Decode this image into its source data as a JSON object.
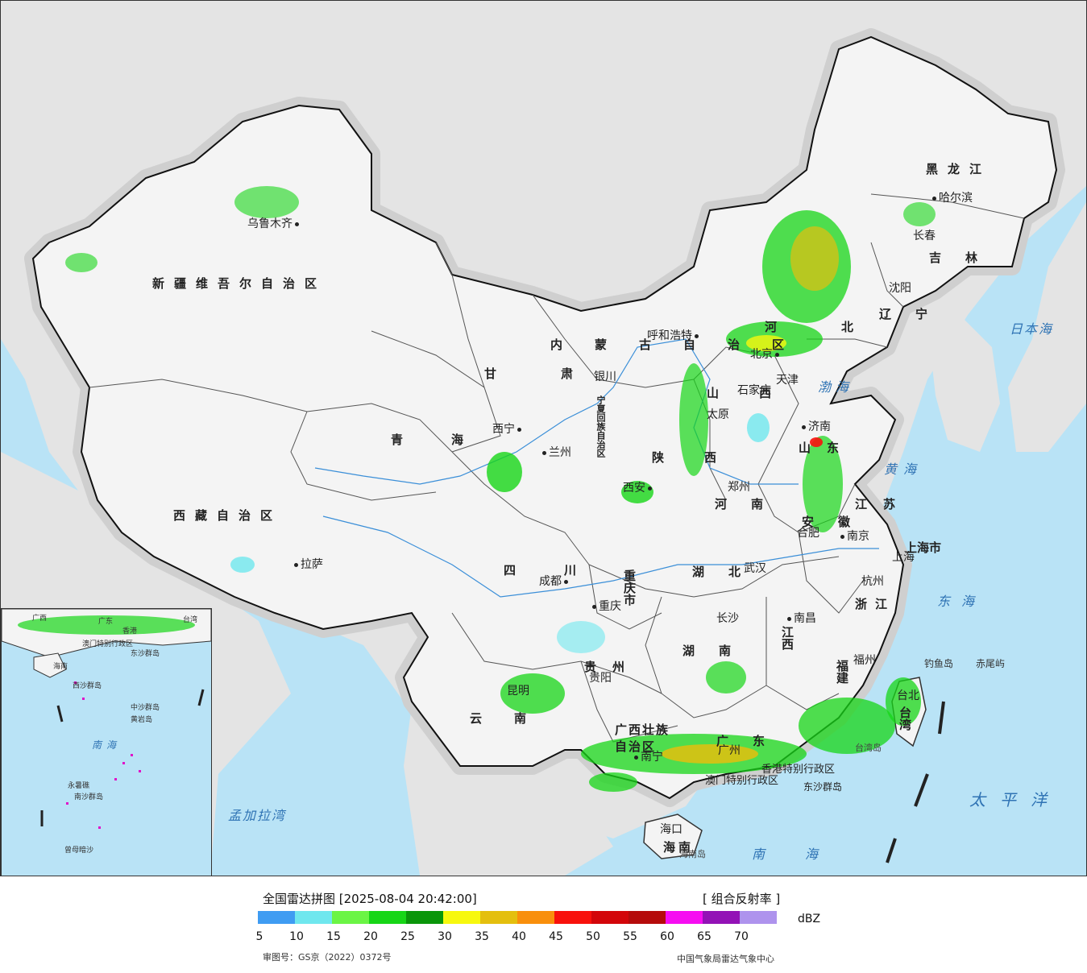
{
  "legend": {
    "title": "全国雷达拼图 [2025-08-04 20:42:00]",
    "product": "[ 组合反射率 ]",
    "unit": "dBZ",
    "scale": [
      {
        "value": "5",
        "color": "#3f9cf2"
      },
      {
        "value": "10",
        "color": "#6fe7ee"
      },
      {
        "value": "15",
        "color": "#6bf545"
      },
      {
        "value": "20",
        "color": "#17d617"
      },
      {
        "value": "25",
        "color": "#0a960a"
      },
      {
        "value": "30",
        "color": "#f7f80e"
      },
      {
        "value": "35",
        "color": "#e4bf0e"
      },
      {
        "value": "40",
        "color": "#f98f0c"
      },
      {
        "value": "45",
        "color": "#f8110c"
      },
      {
        "value": "50",
        "color": "#d3060a"
      },
      {
        "value": "55",
        "color": "#b50b0b"
      },
      {
        "value": "60",
        "color": "#f60df1"
      },
      {
        "value": "65",
        "color": "#9312b6"
      },
      {
        "value": "70",
        "color": "#ae93ed"
      }
    ],
    "approval": "审图号：GS京（2022）0372号",
    "agency": "中国气象局雷达气象中心"
  },
  "provinces": [
    {
      "name": "新疆维吾尔自治区"
    },
    {
      "name": "西藏自治区"
    },
    {
      "name": "青海"
    },
    {
      "name": "甘肃"
    },
    {
      "name": "内蒙古自治区"
    },
    {
      "name": "黑龙江"
    },
    {
      "name": "吉林"
    },
    {
      "name": "辽宁"
    },
    {
      "name": "河北"
    },
    {
      "name": "山西"
    },
    {
      "name": "陕西"
    },
    {
      "name": "河南"
    },
    {
      "name": "山东"
    },
    {
      "name": "江苏"
    },
    {
      "name": "安徽"
    },
    {
      "name": "湖北"
    },
    {
      "name": "四川"
    },
    {
      "name": "重庆市"
    },
    {
      "name": "浙江"
    },
    {
      "name": "江西"
    },
    {
      "name": "湖南"
    },
    {
      "name": "贵州"
    },
    {
      "name": "云南"
    },
    {
      "name": "福建"
    },
    {
      "name": "广西壮族自治区"
    },
    {
      "name": "广东"
    },
    {
      "name": "台湾"
    },
    {
      "name": "海南"
    },
    {
      "name": "上海市"
    },
    {
      "name": "宁夏回族自治区"
    }
  ],
  "cities": [
    {
      "name": "乌鲁木齐"
    },
    {
      "name": "拉萨"
    },
    {
      "name": "西宁"
    },
    {
      "name": "兰州"
    },
    {
      "name": "银川"
    },
    {
      "name": "呼和浩特"
    },
    {
      "name": "哈尔滨"
    },
    {
      "name": "长春"
    },
    {
      "name": "沈阳"
    },
    {
      "name": "北京"
    },
    {
      "name": "天津"
    },
    {
      "name": "石家庄"
    },
    {
      "name": "太原"
    },
    {
      "name": "济南"
    },
    {
      "name": "郑州"
    },
    {
      "name": "西安"
    },
    {
      "name": "合肥"
    },
    {
      "name": "南京"
    },
    {
      "name": "上海"
    },
    {
      "name": "杭州"
    },
    {
      "name": "武汉"
    },
    {
      "name": "成都"
    },
    {
      "name": "重庆"
    },
    {
      "name": "长沙"
    },
    {
      "name": "南昌"
    },
    {
      "name": "福州"
    },
    {
      "name": "贵阳"
    },
    {
      "name": "昆明"
    },
    {
      "name": "南宁"
    },
    {
      "name": "广州"
    },
    {
      "name": "台北"
    },
    {
      "name": "海口"
    },
    {
      "name": "钓鱼岛"
    },
    {
      "name": "赤尾屿"
    },
    {
      "name": "香港特别行政区"
    },
    {
      "name": "澳门特别行政区"
    },
    {
      "name": "东沙群岛"
    },
    {
      "name": "海南岛"
    },
    {
      "name": "台湾岛"
    }
  ],
  "seas": [
    {
      "name": "日本海"
    },
    {
      "name": "渤海"
    },
    {
      "name": "黄海"
    },
    {
      "name": "东海"
    },
    {
      "name": "太平洋"
    },
    {
      "name": "南海"
    },
    {
      "name": "孟加拉湾"
    }
  ],
  "inset": {
    "labels": [
      "广西",
      "广东",
      "台湾",
      "香港",
      "澳门特别行政区",
      "海南",
      "东沙群岛",
      "西沙群岛",
      "中沙群岛",
      "黄岩岛",
      "南沙群岛",
      "永暑礁",
      "曾母暗沙"
    ],
    "sea": "南海"
  }
}
